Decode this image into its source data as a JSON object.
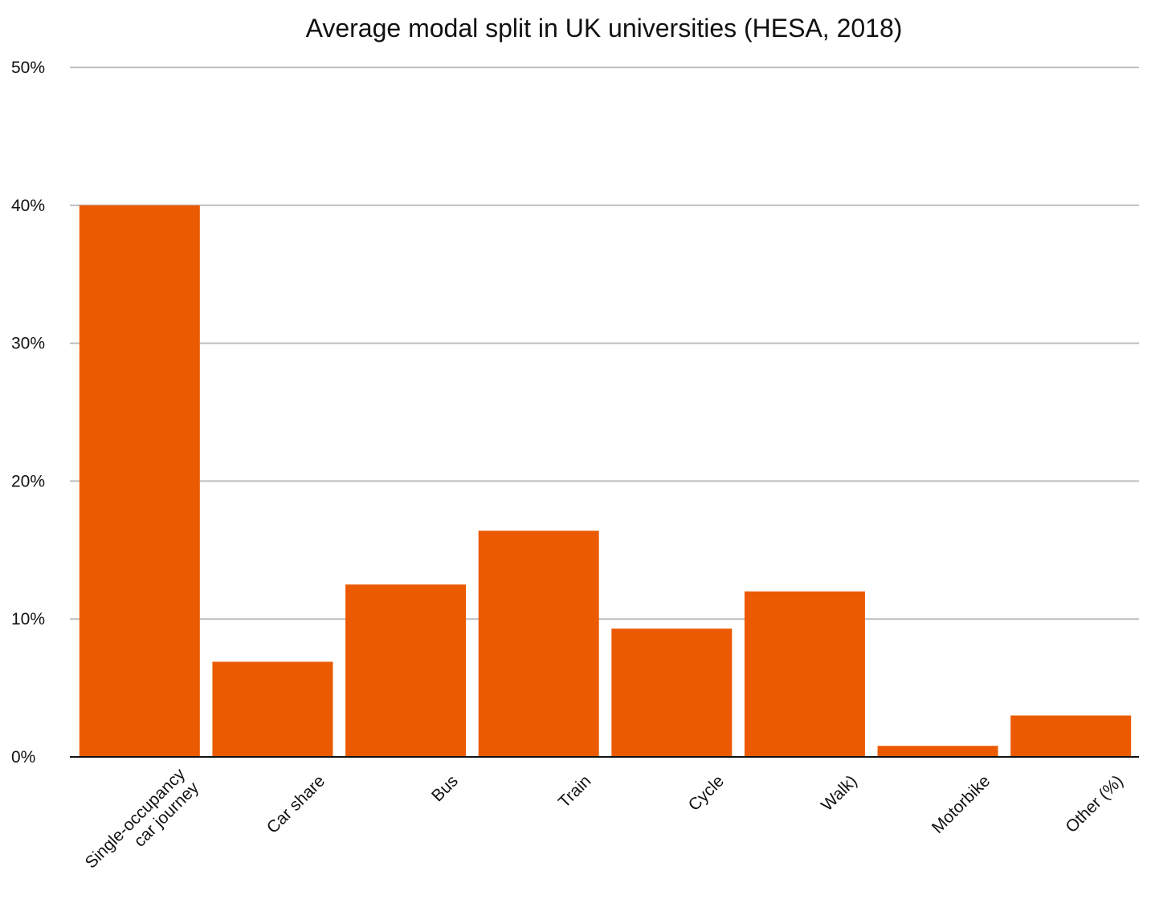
{
  "chart_data": {
    "type": "bar",
    "title": "Average modal split in UK universities (HESA, 2018)",
    "categories": [
      [
        "Single-occupancy",
        "car journey"
      ],
      [
        "Car share"
      ],
      [
        "Bus"
      ],
      [
        "Train"
      ],
      [
        "Cycle"
      ],
      [
        "Walk)"
      ],
      [
        "Motorbike"
      ],
      [
        "Other (%)"
      ]
    ],
    "values": [
      40,
      6.9,
      12.5,
      16.4,
      9.3,
      12.0,
      0.8,
      3.0
    ],
    "ylim": [
      0,
      50
    ],
    "yticks": [
      0,
      10,
      20,
      30,
      40,
      50
    ],
    "ytick_labels": [
      "0%",
      "10%",
      "20%",
      "30%",
      "40%",
      "50%"
    ],
    "grid": true,
    "colors": {
      "bar": "#eb5a00"
    }
  }
}
